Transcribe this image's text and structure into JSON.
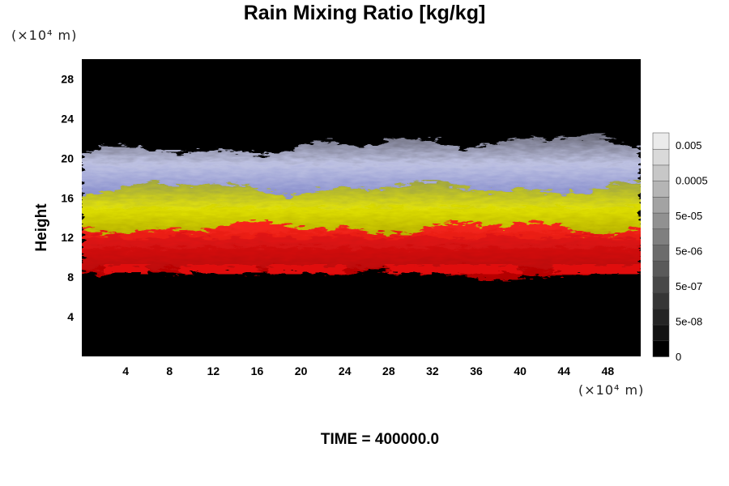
{
  "chart_data": {
    "type": "heatmap",
    "title": "Rain Mixing Ratio [kg/kg]",
    "xlabel": "",
    "ylabel": "Height",
    "x_unit": "(×10⁴ m)",
    "y_unit": "(×10⁴ m)",
    "xlim": [
      0,
      51
    ],
    "ylim": [
      0,
      30
    ],
    "x_ticks": [
      4,
      8,
      12,
      16,
      20,
      24,
      28,
      32,
      36,
      40,
      44,
      48
    ],
    "y_ticks": [
      4,
      8,
      12,
      16,
      20,
      24,
      28
    ],
    "colorbar": {
      "labels": [
        "0.005",
        "0.0005",
        "5e-05",
        "5e-06",
        "5e-07",
        "5e-08",
        "0"
      ],
      "levels": 14
    },
    "layers": [
      {
        "color": "#ff1a1a",
        "y_range": [
          8.5,
          13
        ]
      },
      {
        "color": "#e6e600",
        "y_range": [
          12,
          17
        ]
      },
      {
        "color": "#a8b0e8",
        "y_range": [
          15,
          21
        ]
      }
    ]
  },
  "footer": {
    "time_label": "TIME = 400000.0"
  }
}
